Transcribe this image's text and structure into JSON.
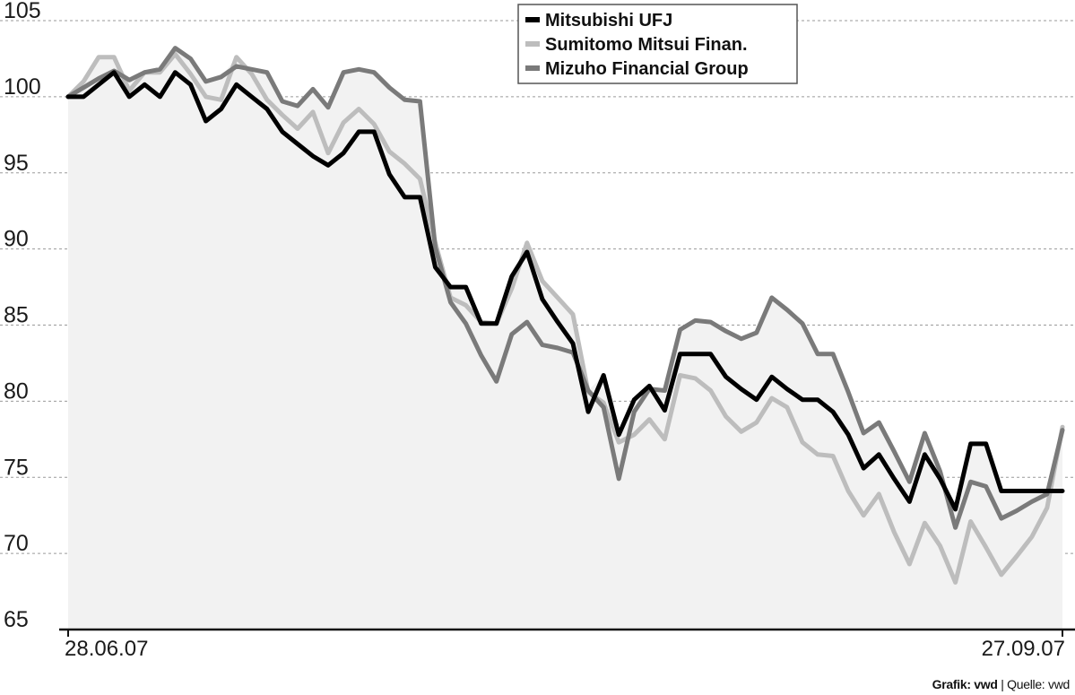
{
  "chart_data": {
    "type": "line",
    "ylim": [
      65,
      105
    ],
    "yticks": [
      65,
      70,
      75,
      80,
      85,
      90,
      95,
      100,
      105
    ],
    "grid": true,
    "legend_position": "top-right",
    "x_start_label": "28.06.07",
    "x_end_label": "27.09.07",
    "n_points": 66,
    "series": [
      {
        "name": "Mitsubishi UFJ",
        "color": "#000000",
        "values": [
          100.0,
          100.0,
          100.8,
          101.6,
          100.0,
          100.8,
          100.0,
          101.6,
          100.8,
          98.4,
          99.2,
          100.8,
          100.0,
          99.2,
          97.7,
          96.9,
          96.1,
          95.5,
          96.3,
          97.7,
          97.7,
          94.9,
          93.4,
          93.4,
          88.8,
          87.5,
          87.5,
          85.1,
          85.1,
          88.2,
          89.8,
          86.7,
          85.2,
          83.8,
          79.3,
          81.7,
          77.8,
          80.1,
          81.0,
          79.4,
          83.1,
          83.1,
          83.1,
          81.6,
          80.8,
          80.1,
          81.6,
          80.8,
          80.1,
          80.1,
          79.3,
          77.8,
          75.6,
          76.5,
          74.9,
          73.4,
          76.5,
          74.9,
          72.9,
          77.2,
          77.2,
          74.1,
          74.1,
          74.1,
          74.1,
          74.1
        ]
      },
      {
        "name": "Sumitomo Mitsui Finan.",
        "color": "#bdbdbd",
        "values": [
          100.0,
          101.0,
          102.6,
          102.6,
          100.4,
          101.6,
          101.6,
          102.8,
          101.5,
          100.0,
          99.8,
          102.6,
          101.5,
          99.8,
          98.8,
          97.9,
          99.0,
          96.3,
          98.3,
          99.2,
          98.2,
          96.4,
          95.6,
          94.6,
          90.4,
          86.8,
          86.3,
          85.2,
          85.1,
          87.4,
          90.4,
          87.9,
          86.8,
          85.7,
          80.6,
          79.9,
          77.3,
          77.8,
          78.8,
          77.5,
          81.7,
          81.5,
          80.7,
          79.0,
          78.0,
          78.6,
          80.2,
          79.6,
          77.3,
          76.5,
          76.4,
          74.1,
          72.5,
          73.9,
          71.4,
          69.3,
          72.0,
          70.5,
          68.1,
          72.1,
          70.4,
          68.6,
          69.8,
          71.1,
          73.0,
          78.3
        ]
      },
      {
        "name": "Mizuho Financial Group",
        "color": "#7a7a7a",
        "values": [
          100.0,
          100.6,
          101.2,
          101.7,
          101.1,
          101.6,
          101.8,
          103.2,
          102.5,
          101.0,
          101.3,
          102.0,
          101.8,
          101.6,
          99.7,
          99.4,
          100.5,
          99.3,
          101.6,
          101.8,
          101.6,
          100.6,
          99.8,
          99.7,
          90.1,
          86.5,
          85.1,
          83.0,
          81.3,
          84.4,
          85.2,
          83.7,
          83.5,
          83.2,
          80.7,
          79.6,
          74.9,
          79.3,
          80.8,
          80.7,
          84.7,
          85.3,
          85.2,
          84.6,
          84.1,
          84.5,
          86.8,
          86.0,
          85.1,
          83.1,
          83.1,
          80.6,
          77.9,
          78.6,
          76.7,
          74.7,
          77.9,
          75.4,
          71.7,
          74.7,
          74.4,
          72.3,
          72.8,
          73.4,
          73.9,
          78.1
        ]
      }
    ]
  },
  "credit": {
    "grafik": "Grafik: vwd",
    "separator": " | ",
    "quelle": "Quelle: vwd"
  }
}
